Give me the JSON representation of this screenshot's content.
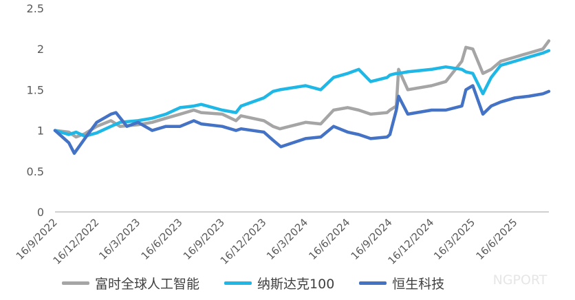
{
  "chart_data": {
    "type": "line",
    "title": "",
    "xlabel": "",
    "ylabel": "",
    "ylim": [
      0,
      2.5
    ],
    "y_ticks": [
      "0",
      "0.5",
      "1",
      "1.5",
      "2",
      "2.5"
    ],
    "x_tick_labels": [
      "16/9/2022",
      "16/12/2022",
      "16/3/2023",
      "16/6/2023",
      "16/9/2023",
      "16/12/2023",
      "16/3/2024",
      "16/6/2024",
      "16/9/2024",
      "16/12/2024",
      "16/3/2025",
      "16/6/2025"
    ],
    "grid": false,
    "legend_position": "bottom",
    "series": [
      {
        "name": "富时全球人工智能",
        "color": "#A5A5A5",
        "x": [
          "2022-09-16",
          "2022-10-16",
          "2022-11-01",
          "2022-11-20",
          "2022-12-16",
          "2023-01-16",
          "2023-02-05",
          "2023-03-16",
          "2023-04-16",
          "2023-05-16",
          "2023-06-16",
          "2023-07-16",
          "2023-08-01",
          "2023-09-16",
          "2023-10-16",
          "2023-10-27",
          "2023-12-16",
          "2024-01-05",
          "2024-01-20",
          "2024-03-16",
          "2024-04-18",
          "2024-05-16",
          "2024-06-16",
          "2024-07-10",
          "2024-08-05",
          "2024-09-10",
          "2024-09-16",
          "2024-09-30",
          "2024-10-05",
          "2024-10-25",
          "2024-12-16",
          "2025-01-16",
          "2025-02-20",
          "2025-03-01",
          "2025-03-16",
          "2025-04-07",
          "2025-04-25",
          "2025-05-16",
          "2025-06-16",
          "2025-07-16",
          "2025-08-16",
          "2025-08-29"
        ],
        "values": [
          1.0,
          0.98,
          0.92,
          0.96,
          1.05,
          1.12,
          1.05,
          1.07,
          1.1,
          1.15,
          1.2,
          1.25,
          1.22,
          1.2,
          1.12,
          1.18,
          1.12,
          1.05,
          1.02,
          1.1,
          1.08,
          1.25,
          1.28,
          1.25,
          1.2,
          1.22,
          1.25,
          1.3,
          1.75,
          1.5,
          1.55,
          1.6,
          1.85,
          2.02,
          2.0,
          1.7,
          1.75,
          1.85,
          1.9,
          1.95,
          2.0,
          2.1
        ]
      },
      {
        "name": "纳斯达克100",
        "color": "#1FB7E6",
        "x": [
          "2022-09-16",
          "2022-10-16",
          "2022-11-01",
          "2022-11-20",
          "2022-12-16",
          "2023-01-16",
          "2023-02-05",
          "2023-03-16",
          "2023-04-16",
          "2023-05-16",
          "2023-06-16",
          "2023-07-16",
          "2023-08-01",
          "2023-09-16",
          "2023-10-16",
          "2023-10-27",
          "2023-12-16",
          "2024-01-05",
          "2024-01-20",
          "2024-03-16",
          "2024-04-18",
          "2024-05-16",
          "2024-06-16",
          "2024-07-10",
          "2024-08-05",
          "2024-09-10",
          "2024-09-16",
          "2024-09-30",
          "2024-10-05",
          "2024-10-25",
          "2024-12-16",
          "2025-01-16",
          "2025-02-20",
          "2025-03-01",
          "2025-03-16",
          "2025-04-07",
          "2025-04-25",
          "2025-05-16",
          "2025-06-16",
          "2025-07-16",
          "2025-08-16",
          "2025-08-29"
        ],
        "values": [
          1.0,
          0.95,
          0.98,
          0.93,
          0.97,
          1.05,
          1.1,
          1.12,
          1.15,
          1.2,
          1.28,
          1.3,
          1.32,
          1.25,
          1.22,
          1.3,
          1.4,
          1.48,
          1.5,
          1.55,
          1.5,
          1.65,
          1.7,
          1.75,
          1.6,
          1.65,
          1.68,
          1.7,
          1.7,
          1.72,
          1.75,
          1.78,
          1.75,
          1.72,
          1.7,
          1.45,
          1.65,
          1.8,
          1.85,
          1.9,
          1.95,
          1.98
        ]
      },
      {
        "name": "恒生科技",
        "color": "#4472C4",
        "x": [
          "2022-09-16",
          "2022-10-16",
          "2022-10-28",
          "2022-11-20",
          "2022-12-16",
          "2023-01-16",
          "2023-01-27",
          "2023-02-20",
          "2023-03-16",
          "2023-04-16",
          "2023-05-16",
          "2023-06-16",
          "2023-07-16",
          "2023-08-01",
          "2023-09-16",
          "2023-10-16",
          "2023-10-27",
          "2023-12-16",
          "2024-01-05",
          "2024-01-22",
          "2024-03-16",
          "2024-04-18",
          "2024-05-16",
          "2024-06-16",
          "2024-07-10",
          "2024-08-05",
          "2024-09-10",
          "2024-09-16",
          "2024-09-30",
          "2024-10-05",
          "2024-10-25",
          "2024-12-16",
          "2025-01-16",
          "2025-02-20",
          "2025-03-01",
          "2025-03-16",
          "2025-04-07",
          "2025-04-25",
          "2025-05-16",
          "2025-06-16",
          "2025-07-16",
          "2025-08-16",
          "2025-08-29"
        ],
        "values": [
          1.0,
          0.85,
          0.72,
          0.9,
          1.1,
          1.2,
          1.22,
          1.05,
          1.1,
          1.0,
          1.05,
          1.05,
          1.12,
          1.08,
          1.05,
          1.0,
          1.02,
          0.98,
          0.88,
          0.8,
          0.9,
          0.92,
          1.05,
          0.98,
          0.95,
          0.9,
          0.92,
          0.95,
          1.25,
          1.42,
          1.2,
          1.25,
          1.25,
          1.3,
          1.5,
          1.55,
          1.2,
          1.3,
          1.35,
          1.4,
          1.42,
          1.45,
          1.48
        ]
      }
    ]
  },
  "watermark": "NGPORT"
}
